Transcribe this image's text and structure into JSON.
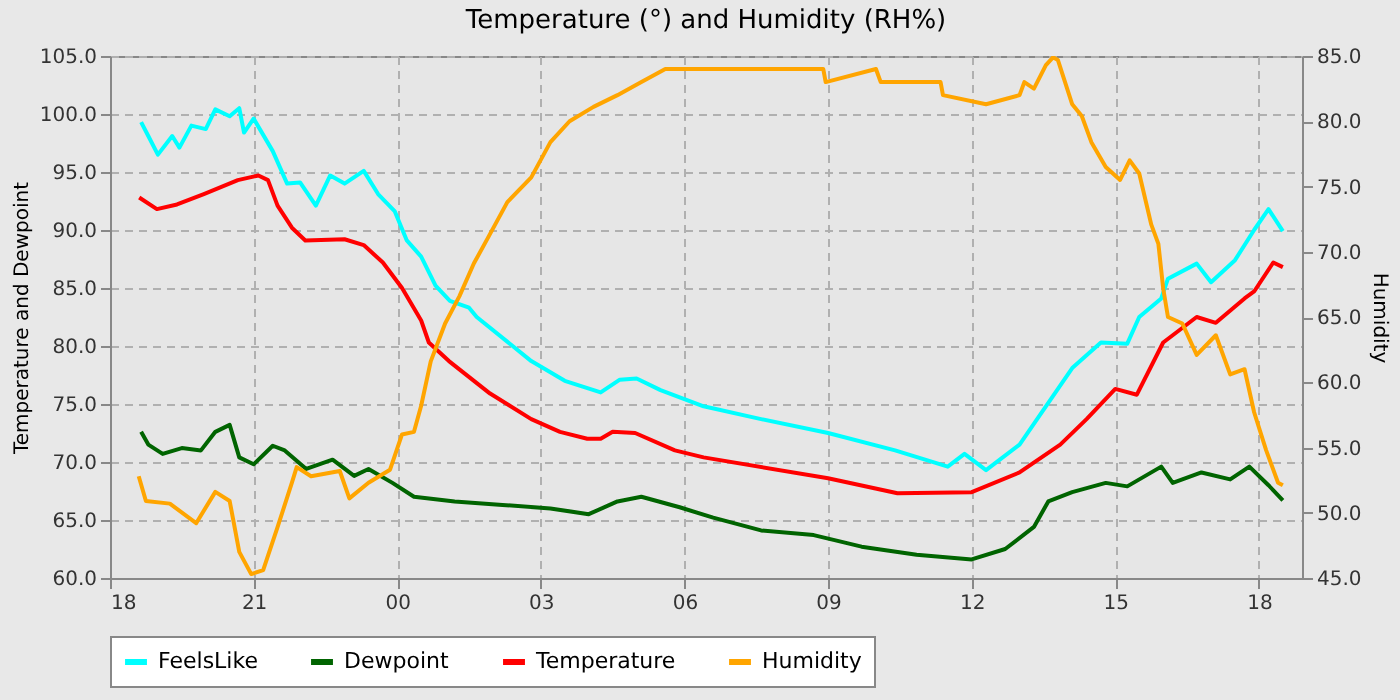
{
  "chart_data": {
    "type": "line",
    "title": "Temperature (°) and Humidity (RH%)",
    "ylabel": "Temperature and Dewpoint",
    "y2label": "Humidity",
    "xlim": [
      18,
      42.9
    ],
    "xticks": [
      {
        "value": 18,
        "label": "18"
      },
      {
        "value": 21,
        "label": "21"
      },
      {
        "value": 24,
        "label": "00"
      },
      {
        "value": 27,
        "label": "03"
      },
      {
        "value": 30,
        "label": "06"
      },
      {
        "value": 33,
        "label": "09"
      },
      {
        "value": 36,
        "label": "12"
      },
      {
        "value": 39,
        "label": "15"
      },
      {
        "value": 42,
        "label": "18"
      }
    ],
    "ylim": [
      60,
      105
    ],
    "yticks": [
      {
        "value": 60,
        "label": "60.0"
      },
      {
        "value": 65,
        "label": "65.0"
      },
      {
        "value": 70,
        "label": "70.0"
      },
      {
        "value": 75,
        "label": "75.0"
      },
      {
        "value": 80,
        "label": "80.0"
      },
      {
        "value": 85,
        "label": "85.0"
      },
      {
        "value": 90,
        "label": "90.0"
      },
      {
        "value": 95,
        "label": "95.0"
      },
      {
        "value": 100,
        "label": "100.0"
      },
      {
        "value": 105,
        "label": "105.0"
      }
    ],
    "y2lim": [
      45,
      85
    ],
    "y2ticks": [
      {
        "value": 45,
        "label": "45.0"
      },
      {
        "value": 50,
        "label": "50.0"
      },
      {
        "value": 55,
        "label": "55.0"
      },
      {
        "value": 60,
        "label": "60.0"
      },
      {
        "value": 65,
        "label": "65.0"
      },
      {
        "value": 70,
        "label": "70.0"
      },
      {
        "value": 75,
        "label": "75.0"
      },
      {
        "value": 80,
        "label": "80.0"
      },
      {
        "value": 85,
        "label": "85.0"
      }
    ],
    "grid": true,
    "legend": "bottom",
    "series": [
      {
        "name": "FeelsLike",
        "color": "#00ffff",
        "x": [
          18.65,
          18.8,
          19,
          19.3,
          19.45,
          19.7,
          20,
          20.2,
          20.5,
          20.7,
          20.8,
          21,
          21.4,
          21.7,
          21.97,
          22.3,
          22.6,
          22.9,
          23.3,
          23.6,
          23.95,
          24.2,
          24.5,
          24.8,
          25.1,
          25.5,
          25.66,
          26.8,
          27.5,
          28.25,
          28.65,
          29,
          29.5,
          30.4,
          31.6,
          33,
          34.4,
          35.5,
          35.85,
          36.3,
          37,
          37.55,
          38.1,
          38.7,
          39.25,
          39.5,
          39.96,
          40.1,
          40.7,
          41,
          41.5,
          41.9,
          42.2,
          42.5
        ],
        "values": [
          99.3,
          98.1,
          96.5,
          98.1,
          97.1,
          99,
          98.7,
          100.4,
          99.8,
          100.5,
          98.4,
          99.6,
          96.8,
          94,
          94.1,
          92.1,
          94.7,
          94,
          95.1,
          93.1,
          91.6,
          89.1,
          87.7,
          85.2,
          83.9,
          83.3,
          82.5,
          78.7,
          77,
          76,
          77.1,
          77.2,
          76.2,
          74.8,
          73.7,
          72.5,
          71,
          69.6,
          70.7,
          69.3,
          71.5,
          74.8,
          78.1,
          80.3,
          80.2,
          82.5,
          84.1,
          85.8,
          87.1,
          85.5,
          87.4,
          90,
          91.8,
          89.9
        ]
      },
      {
        "name": "Dewpoint",
        "color": "#006400",
        "x": [
          18.65,
          18.8,
          19.1,
          19.5,
          19.9,
          20.2,
          20.5,
          20.7,
          21,
          21.4,
          21.65,
          22.1,
          22.65,
          23.1,
          23.4,
          23.9,
          24.35,
          25.2,
          26.2,
          27.2,
          28,
          28.6,
          29.1,
          29.9,
          30.6,
          31.6,
          32.7,
          33.7,
          34.85,
          36,
          36.7,
          37.3,
          37.6,
          38.1,
          38.8,
          39.25,
          39.96,
          40.2,
          40.8,
          41.4,
          41.8,
          42.2,
          42.5
        ],
        "values": [
          72.6,
          71.5,
          70.7,
          71.2,
          71,
          72.6,
          73.2,
          70.4,
          69.8,
          71.4,
          71,
          69.4,
          70.2,
          68.8,
          69.4,
          68.2,
          67,
          66.6,
          66.3,
          66,
          65.5,
          66.6,
          67,
          66.1,
          65.2,
          64.1,
          63.7,
          62.7,
          62,
          61.6,
          62.5,
          64.4,
          66.6,
          67.4,
          68.2,
          67.9,
          69.6,
          68.2,
          69.1,
          68.5,
          69.6,
          68,
          66.7
        ]
      },
      {
        "name": "Temperature",
        "color": "#ff0000",
        "x": [
          18.61,
          18.98,
          19.4,
          19.96,
          20.67,
          21.1,
          21.3,
          21.5,
          21.8,
          22.08,
          22.9,
          23.3,
          23.7,
          24.1,
          24.5,
          24.66,
          25.08,
          25.94,
          26.8,
          27.4,
          27.97,
          28.25,
          28.5,
          28.97,
          29.8,
          30.4,
          33,
          34.45,
          36,
          37,
          37.85,
          38.4,
          39,
          39.45,
          40,
          40.7,
          41.1,
          41.7,
          41.9,
          42.3,
          42.5
        ],
        "values": [
          92.8,
          91.8,
          92.2,
          93.1,
          94.3,
          94.7,
          94.3,
          92.1,
          90.2,
          89.1,
          89.2,
          88.7,
          87.2,
          85,
          82.2,
          80.3,
          78.7,
          75.9,
          73.7,
          72.6,
          72,
          72,
          72.6,
          72.5,
          71,
          70.4,
          68.6,
          67.3,
          67.4,
          69.1,
          71.5,
          73.7,
          76.3,
          75.8,
          80.3,
          82.5,
          82,
          84.1,
          84.7,
          87.2,
          86.8
        ]
      },
      {
        "name": "Humidity",
        "color": "#ffa500",
        "axis": "y2",
        "x": [
          18.6,
          18.75,
          19.25,
          19.8,
          20.2,
          20.5,
          20.7,
          20.95,
          21.2,
          21.5,
          21.8,
          21.9,
          22.2,
          22.8,
          23,
          23.4,
          23.85,
          24.1,
          24.35,
          24.5,
          24.7,
          25,
          25.3,
          25.6,
          25.9,
          26.3,
          26.8,
          27.2,
          27.6,
          28.1,
          28.6,
          29.1,
          29.6,
          30.6,
          32.9,
          32.95,
          34,
          34.1,
          35.35,
          35.4,
          36.3,
          37,
          37.1,
          37.3,
          37.55,
          37.7,
          37.8,
          38.1,
          38.3,
          38.5,
          38.8,
          39.1,
          39.3,
          39.5,
          39.75,
          39.9,
          40,
          40.1,
          40.4,
          40.7,
          41.1,
          41.4,
          41.7,
          41.9,
          42.15,
          42.4,
          42.5
        ],
        "values": [
          52.8,
          50.9,
          50.7,
          49.2,
          51.6,
          50.9,
          47,
          45.3,
          45.6,
          48.9,
          52.3,
          53.5,
          52.8,
          53.2,
          51.1,
          52.3,
          53.3,
          56,
          56.2,
          58.2,
          61.6,
          64.5,
          66.6,
          69.1,
          71.1,
          73.8,
          75.7,
          78.4,
          80,
          81.1,
          82,
          83,
          84,
          84,
          84,
          83,
          84,
          83,
          83,
          82,
          81.3,
          82,
          83,
          82.5,
          84.3,
          84.9,
          84.7,
          81.3,
          80.4,
          78.4,
          76.5,
          75.5,
          77,
          76,
          72.1,
          70.6,
          67.2,
          65,
          64.5,
          62.1,
          63.6,
          60.6,
          61,
          57.7,
          54.8,
          52.3,
          52.1
        ]
      }
    ]
  }
}
